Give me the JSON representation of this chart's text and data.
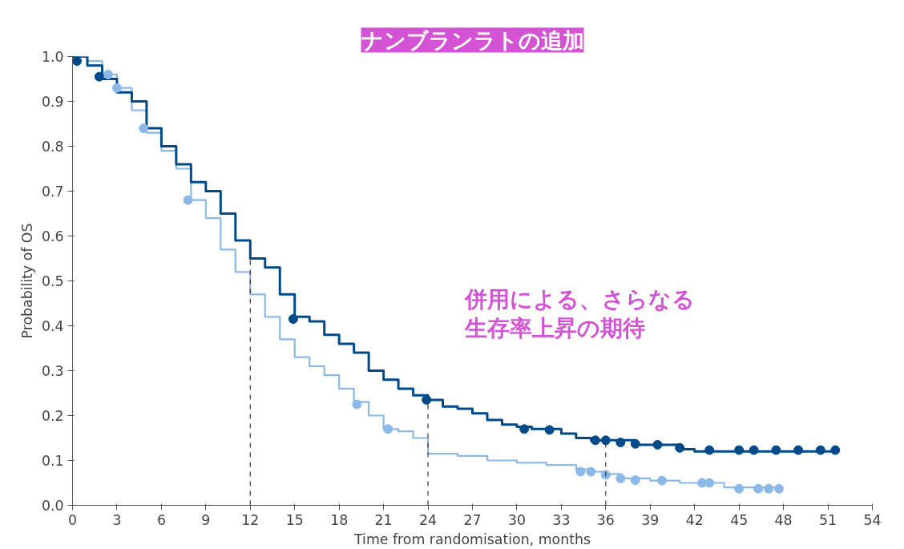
{
  "chart_data": {
    "type": "step",
    "title": "ナンブランラトの追加",
    "xlabel": "Time from randomisation, months",
    "ylabel": "Probability of OS",
    "xlim": [
      0,
      54
    ],
    "ylim": [
      0,
      1.0
    ],
    "xticks": [
      0,
      3,
      6,
      9,
      12,
      15,
      18,
      21,
      24,
      27,
      30,
      33,
      36,
      39,
      42,
      45,
      48,
      51,
      54
    ],
    "yticks": [
      {
        "value": 0,
        "label": "0.0"
      },
      0.1,
      0.2,
      0.3,
      0.4,
      0.5,
      0.6,
      0.7,
      0.8,
      0.9,
      {
        "value": 1,
        "label": "1.0"
      }
    ],
    "grid": false,
    "annotations": [
      "併用による、さらなる",
      "生存率上昇の期待"
    ],
    "ref_lines": [
      {
        "axis": "x",
        "value": 12,
        "color": "#333333",
        "line_style": "dashed"
      },
      {
        "axis": "x",
        "value": 24,
        "color": "#333333",
        "line_style": "dashed"
      },
      {
        "axis": "x",
        "value": 36,
        "color": "#333333",
        "line_style": "dashed"
      }
    ],
    "series": [
      {
        "color": "#8ab8e8",
        "marker": "none",
        "x": [
          0,
          1,
          2,
          3,
          4,
          5,
          6,
          7,
          8,
          9,
          10,
          11,
          12,
          13,
          14,
          15,
          16,
          17,
          18,
          19,
          20,
          21,
          22,
          23,
          24,
          26,
          28,
          30,
          32,
          34,
          35,
          36,
          37,
          39,
          41,
          43,
          44,
          47.7
        ],
        "values": [
          1.0,
          0.99,
          0.96,
          0.93,
          0.88,
          0.83,
          0.79,
          0.75,
          0.68,
          0.64,
          0.57,
          0.52,
          0.47,
          0.42,
          0.37,
          0.33,
          0.31,
          0.29,
          0.26,
          0.23,
          0.2,
          0.17,
          0.165,
          0.15,
          0.115,
          0.11,
          0.1,
          0.095,
          0.09,
          0.08,
          0.075,
          0.07,
          0.06,
          0.055,
          0.05,
          0.05,
          0.04,
          0.037
        ]
      },
      {
        "color": "#004a8a",
        "marker": "none",
        "x": [
          0,
          1,
          2,
          3,
          4,
          5,
          6,
          7,
          8,
          9,
          10,
          11,
          12,
          13,
          14,
          15,
          16,
          17,
          18,
          19,
          20,
          21,
          22,
          23,
          24,
          25,
          26,
          27,
          28,
          29,
          30,
          31,
          33,
          34,
          35,
          38,
          41,
          42,
          51.5
        ],
        "values": [
          1.0,
          0.98,
          0.95,
          0.92,
          0.9,
          0.84,
          0.8,
          0.76,
          0.72,
          0.7,
          0.65,
          0.59,
          0.55,
          0.53,
          0.47,
          0.42,
          0.41,
          0.38,
          0.36,
          0.34,
          0.3,
          0.28,
          0.26,
          0.245,
          0.235,
          0.22,
          0.215,
          0.205,
          0.19,
          0.18,
          0.175,
          0.17,
          0.16,
          0.15,
          0.145,
          0.135,
          0.125,
          0.12,
          0.12
        ]
      },
      {
        "type": "scatter",
        "color": "#8ab8e8",
        "marker": "circle",
        "x": [
          2.4,
          3,
          4.8,
          7.8,
          19.2,
          21.3,
          34.3,
          35,
          36,
          37,
          38,
          39.8,
          42.5,
          43,
          45,
          46.3,
          47,
          47.7
        ],
        "values": [
          0.96,
          0.93,
          0.84,
          0.68,
          0.225,
          0.17,
          0.075,
          0.075,
          0.068,
          0.06,
          0.056,
          0.055,
          0.05,
          0.05,
          0.037,
          0.037,
          0.037,
          0.037
        ]
      },
      {
        "type": "scatter",
        "color": "#004a8a",
        "marker": "circle",
        "x": [
          0.3,
          1.8,
          14.9,
          23.9,
          30.5,
          32.2,
          35.3,
          36,
          37,
          38,
          39.5,
          41,
          43,
          45,
          46,
          47.5,
          49,
          50.5,
          51.5
        ],
        "values": [
          0.99,
          0.955,
          0.415,
          0.235,
          0.17,
          0.168,
          0.145,
          0.145,
          0.14,
          0.137,
          0.135,
          0.128,
          0.123,
          0.123,
          0.123,
          0.123,
          0.123,
          0.123,
          0.123
        ]
      }
    ]
  }
}
